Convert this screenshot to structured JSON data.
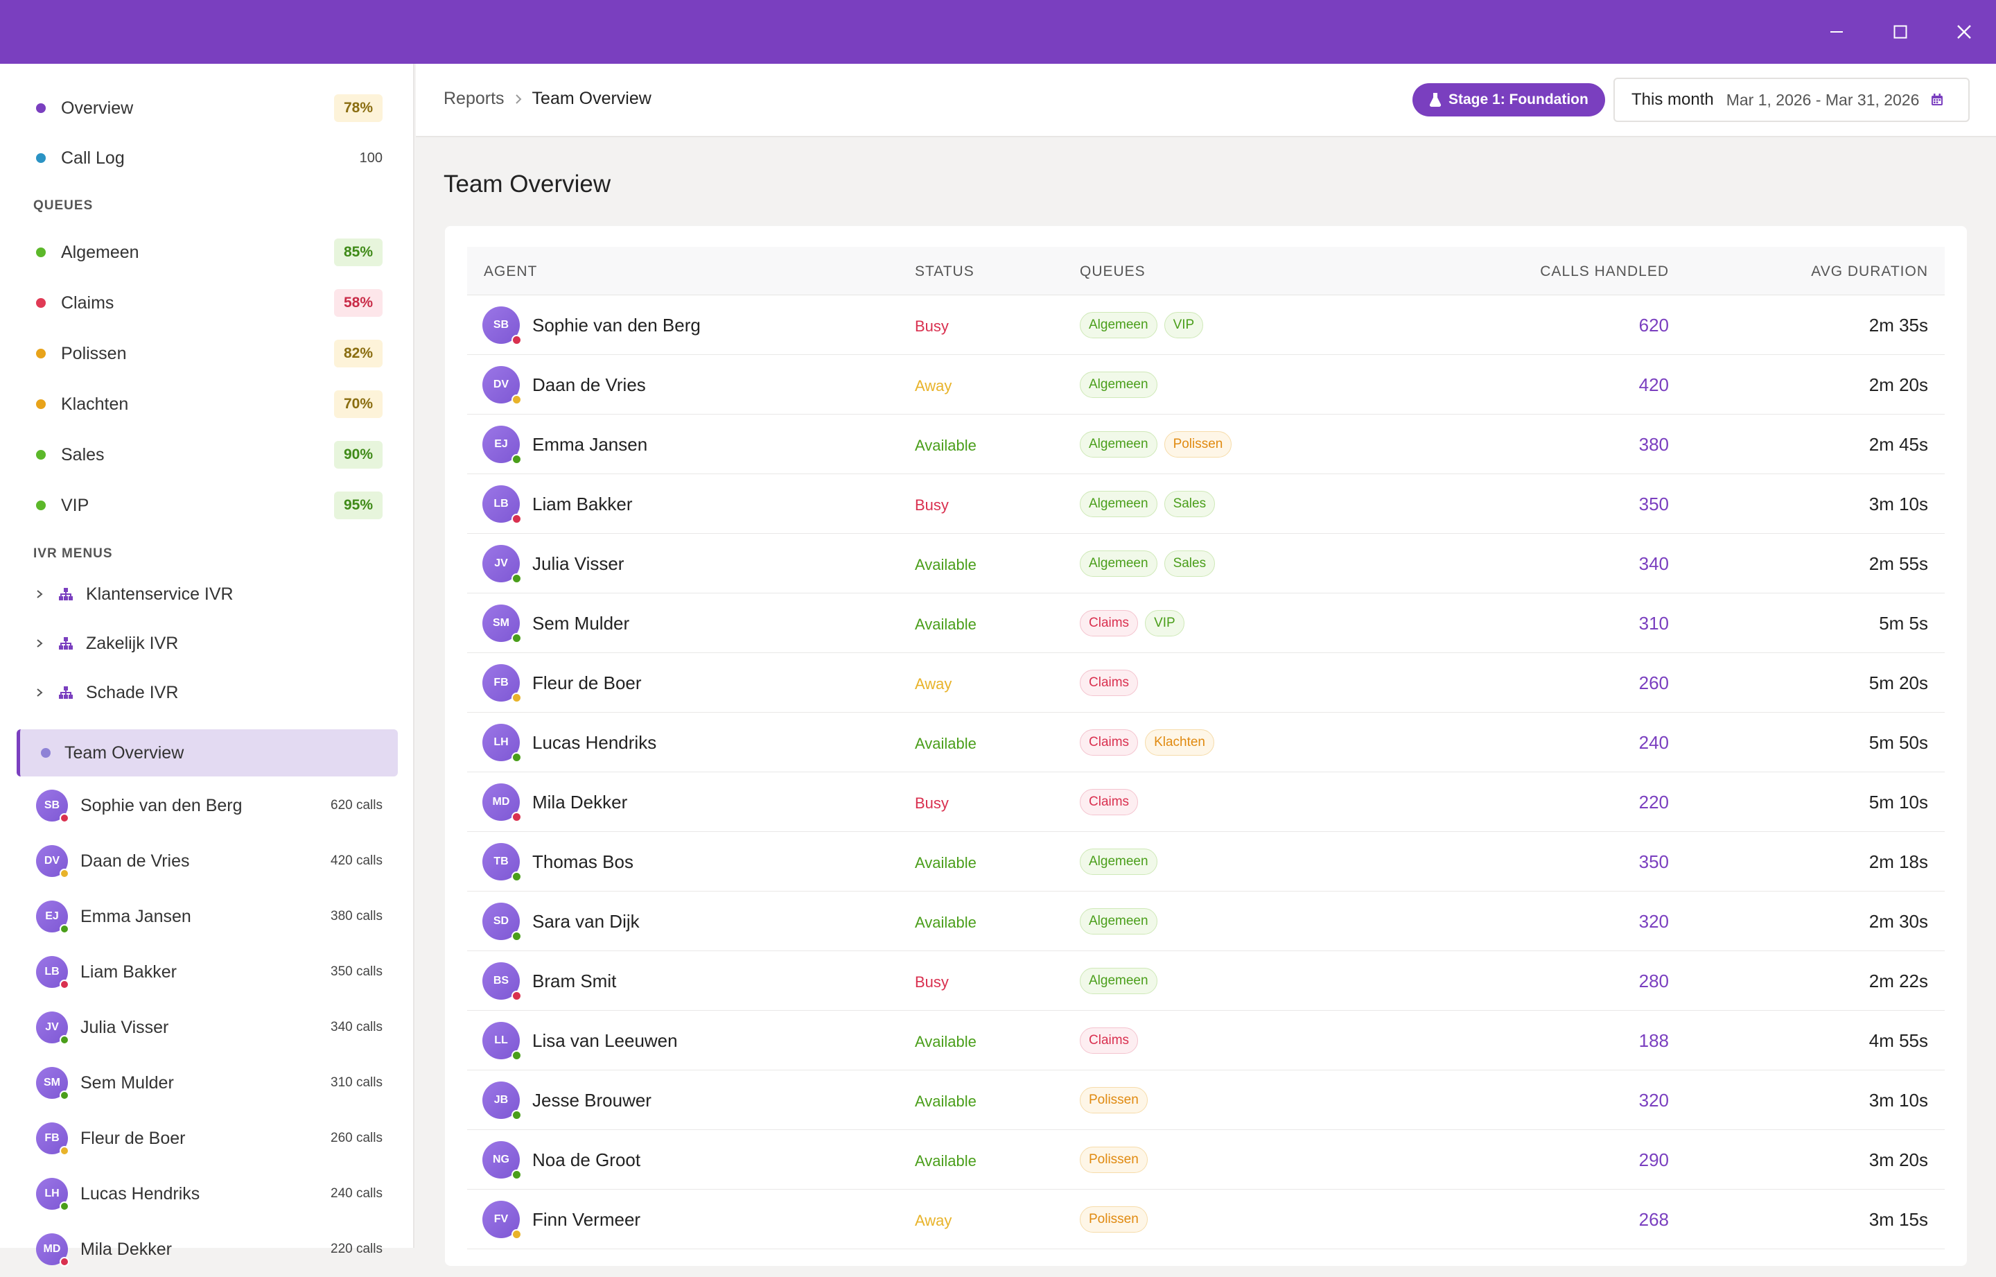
{
  "window": {
    "minimize_icon": "minimize-icon",
    "maximize_icon": "maximize-icon",
    "close_icon": "close-icon"
  },
  "colors": {
    "brand": "#7a3fbf",
    "busy": "#d9304f",
    "away": "#e8b32a",
    "available": "#4a9e1a"
  },
  "sidebar": {
    "top_items": [
      {
        "label": "Overview",
        "badge": "78%",
        "dot": "#7a3fbf",
        "badge_bg": "#fdf3d9",
        "badge_color": "#8a6d10"
      },
      {
        "label": "Call Log",
        "count": "100",
        "dot": "#2b93c4"
      }
    ],
    "queues_heading": "QUEUES",
    "queues": [
      {
        "label": "Algemeen",
        "badge": "85%",
        "dot": "#5cb82a",
        "badge_bg": "#e7f5dc",
        "badge_color": "#3f8a18"
      },
      {
        "label": "Claims",
        "badge": "58%",
        "dot": "#e03a55",
        "badge_bg": "#fde6ea",
        "badge_color": "#c92c48"
      },
      {
        "label": "Polissen",
        "badge": "82%",
        "dot": "#e8a31a",
        "badge_bg": "#fdf3d9",
        "badge_color": "#8a6d10"
      },
      {
        "label": "Klachten",
        "badge": "70%",
        "dot": "#e8a31a",
        "badge_bg": "#fdf3d9",
        "badge_color": "#8a6d10"
      },
      {
        "label": "Sales",
        "badge": "90%",
        "dot": "#5cb82a",
        "badge_bg": "#e7f5dc",
        "badge_color": "#3f8a18"
      },
      {
        "label": "VIP",
        "badge": "95%",
        "dot": "#5cb82a",
        "badge_bg": "#e7f5dc",
        "badge_color": "#3f8a18"
      }
    ],
    "ivr_heading": "IVR MENUS",
    "ivr": [
      {
        "label": "Klantenservice IVR"
      },
      {
        "label": "Zakelijk IVR"
      },
      {
        "label": "Schade IVR"
      }
    ],
    "active": {
      "label": "Team Overview"
    },
    "agents": [
      {
        "initials": "SB",
        "name": "Sophie van den Berg",
        "calls": "620 calls",
        "status": "busy"
      },
      {
        "initials": "DV",
        "name": "Daan de Vries",
        "calls": "420 calls",
        "status": "away"
      },
      {
        "initials": "EJ",
        "name": "Emma Jansen",
        "calls": "380 calls",
        "status": "available"
      },
      {
        "initials": "LB",
        "name": "Liam Bakker",
        "calls": "350 calls",
        "status": "busy"
      },
      {
        "initials": "JV",
        "name": "Julia Visser",
        "calls": "340 calls",
        "status": "available"
      },
      {
        "initials": "SM",
        "name": "Sem Mulder",
        "calls": "310 calls",
        "status": "available"
      },
      {
        "initials": "FB",
        "name": "Fleur de Boer",
        "calls": "260 calls",
        "status": "away"
      },
      {
        "initials": "LH",
        "name": "Lucas Hendriks",
        "calls": "240 calls",
        "status": "available"
      },
      {
        "initials": "MD",
        "name": "Mila Dekker",
        "calls": "220 calls",
        "status": "busy"
      }
    ]
  },
  "header": {
    "breadcrumb": [
      "Reports",
      "Team Overview"
    ],
    "stage": "Stage 1: Foundation",
    "period": "This month",
    "range": "Mar 1, 2026 - Mar 31, 2026"
  },
  "page": {
    "title": "Team Overview"
  },
  "table": {
    "columns": [
      "AGENT",
      "STATUS",
      "QUEUES",
      "CALLS HANDLED",
      "AVG DURATION"
    ],
    "rows": [
      {
        "initials": "SB",
        "name": "Sophie van den Berg",
        "status": "Busy",
        "queues": [
          "Algemeen",
          "VIP"
        ],
        "calls": "620",
        "dur": "2m 35s"
      },
      {
        "initials": "DV",
        "name": "Daan de Vries",
        "status": "Away",
        "queues": [
          "Algemeen"
        ],
        "calls": "420",
        "dur": "2m 20s"
      },
      {
        "initials": "EJ",
        "name": "Emma Jansen",
        "status": "Available",
        "queues": [
          "Algemeen",
          "Polissen"
        ],
        "calls": "380",
        "dur": "2m 45s"
      },
      {
        "initials": "LB",
        "name": "Liam Bakker",
        "status": "Busy",
        "queues": [
          "Algemeen",
          "Sales"
        ],
        "calls": "350",
        "dur": "3m 10s"
      },
      {
        "initials": "JV",
        "name": "Julia Visser",
        "status": "Available",
        "queues": [
          "Algemeen",
          "Sales"
        ],
        "calls": "340",
        "dur": "2m 55s"
      },
      {
        "initials": "SM",
        "name": "Sem Mulder",
        "status": "Available",
        "queues": [
          "Claims",
          "VIP"
        ],
        "calls": "310",
        "dur": "5m 5s"
      },
      {
        "initials": "FB",
        "name": "Fleur de Boer",
        "status": "Away",
        "queues": [
          "Claims"
        ],
        "calls": "260",
        "dur": "5m 20s"
      },
      {
        "initials": "LH",
        "name": "Lucas Hendriks",
        "status": "Available",
        "queues": [
          "Claims",
          "Klachten"
        ],
        "calls": "240",
        "dur": "5m 50s"
      },
      {
        "initials": "MD",
        "name": "Mila Dekker",
        "status": "Busy",
        "queues": [
          "Claims"
        ],
        "calls": "220",
        "dur": "5m 10s"
      },
      {
        "initials": "TB",
        "name": "Thomas Bos",
        "status": "Available",
        "queues": [
          "Algemeen"
        ],
        "calls": "350",
        "dur": "2m 18s"
      },
      {
        "initials": "SD",
        "name": "Sara van Dijk",
        "status": "Available",
        "queues": [
          "Algemeen"
        ],
        "calls": "320",
        "dur": "2m 30s"
      },
      {
        "initials": "BS",
        "name": "Bram Smit",
        "status": "Busy",
        "queues": [
          "Algemeen"
        ],
        "calls": "280",
        "dur": "2m 22s"
      },
      {
        "initials": "LL",
        "name": "Lisa van Leeuwen",
        "status": "Available",
        "queues": [
          "Claims"
        ],
        "calls": "188",
        "dur": "4m 55s"
      },
      {
        "initials": "JB",
        "name": "Jesse Brouwer",
        "status": "Available",
        "queues": [
          "Polissen"
        ],
        "calls": "320",
        "dur": "3m 10s"
      },
      {
        "initials": "NG",
        "name": "Noa de Groot",
        "status": "Available",
        "queues": [
          "Polissen"
        ],
        "calls": "290",
        "dur": "3m 20s"
      },
      {
        "initials": "FV",
        "name": "Finn Vermeer",
        "status": "Away",
        "queues": [
          "Polissen"
        ],
        "calls": "268",
        "dur": "3m 15s"
      }
    ]
  }
}
